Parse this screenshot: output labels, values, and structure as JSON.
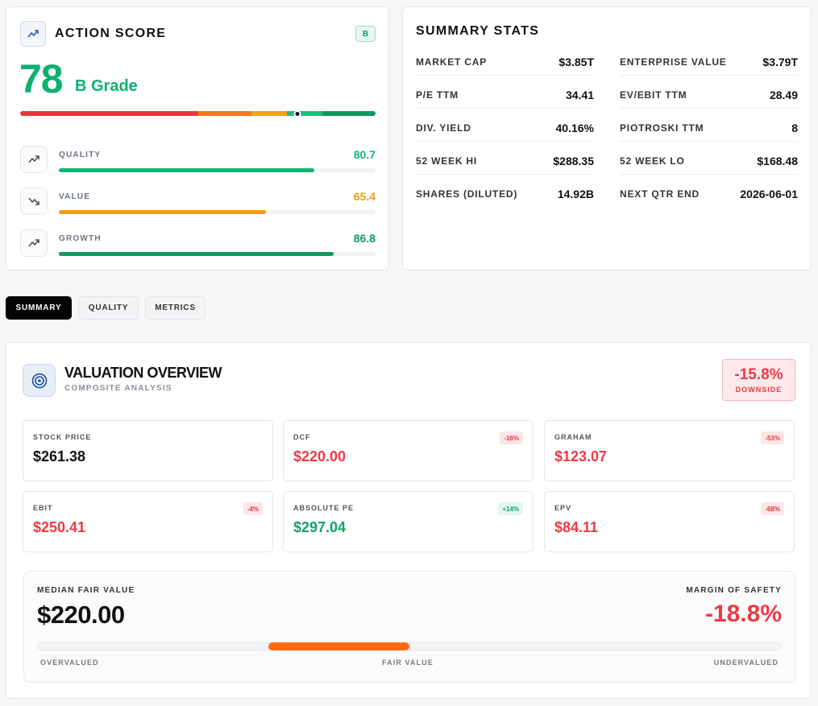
{
  "action_score": {
    "title": "ACTION SCORE",
    "grade_badge": "B",
    "score": "78",
    "score_value": 78,
    "grade_text": "B Grade",
    "metrics": [
      {
        "label": "QUALITY",
        "value": "80.7",
        "fraction": 0.807,
        "color": "#10b571",
        "trend": "up"
      },
      {
        "label": "VALUE",
        "value": "65.4",
        "fraction": 0.654,
        "color": "#f29d0e",
        "trend": "down"
      },
      {
        "label": "GROWTH",
        "value": "86.8",
        "fraction": 0.868,
        "color": "#0d9a62",
        "trend": "up"
      }
    ]
  },
  "summary_stats": {
    "title": "SUMMARY STATS",
    "left": [
      {
        "label": "MARKET CAP",
        "value": "$3.85T"
      },
      {
        "label": "P/E TTM",
        "value": "34.41"
      },
      {
        "label": "DIV. YIELD",
        "value": "40.16%"
      },
      {
        "label": "52 WEEK HI",
        "value": "$288.35"
      },
      {
        "label": "SHARES (DILUTED)",
        "value": "14.92B"
      }
    ],
    "right": [
      {
        "label": "ENTERPRISE VALUE",
        "value": "$3.79T"
      },
      {
        "label": "EV/EBIT TTM",
        "value": "28.49"
      },
      {
        "label": "PIOTROSKI TTM",
        "value": "8"
      },
      {
        "label": "52 WEEK LO",
        "value": "$168.48"
      },
      {
        "label": "NEXT QTR END",
        "value": "2026-06-01"
      }
    ]
  },
  "tabs": [
    {
      "label": "SUMMARY",
      "active": true
    },
    {
      "label": "QUALITY",
      "active": false
    },
    {
      "label": "METRICS",
      "active": false
    }
  ],
  "valuation": {
    "title": "VALUATION OVERVIEW",
    "subtitle": "COMPOSITE ANALYSIS",
    "downside_value": "-15.8%",
    "downside_label": "DOWNSIDE",
    "models": [
      {
        "label": "STOCK PRICE",
        "value": "$261.38",
        "badge": "",
        "tone": "neutral"
      },
      {
        "label": "DCF",
        "value": "$220.00",
        "badge": "-16%",
        "tone": "red"
      },
      {
        "label": "GRAHAM",
        "value": "$123.07",
        "badge": "-53%",
        "tone": "red"
      },
      {
        "label": "EBIT",
        "value": "$250.41",
        "badge": "-4%",
        "tone": "red"
      },
      {
        "label": "ABSOLUTE PE",
        "value": "$297.04",
        "badge": "+14%",
        "tone": "green"
      },
      {
        "label": "EPV",
        "value": "$84.11",
        "badge": "-68%",
        "tone": "red"
      }
    ],
    "median_label": "MEDIAN FAIR VALUE",
    "median_value": "$220.00",
    "margin_label": "MARGIN OF SAFETY",
    "margin_value": "-18.8%",
    "scale_labels": [
      "OVERVALUED",
      "FAIR VALUE",
      "UNDERVALUED"
    ]
  },
  "colors": {
    "green": "#0eb070",
    "red": "#ee3a44",
    "orange": "#ff6a13",
    "amber": "#f29d0e"
  }
}
